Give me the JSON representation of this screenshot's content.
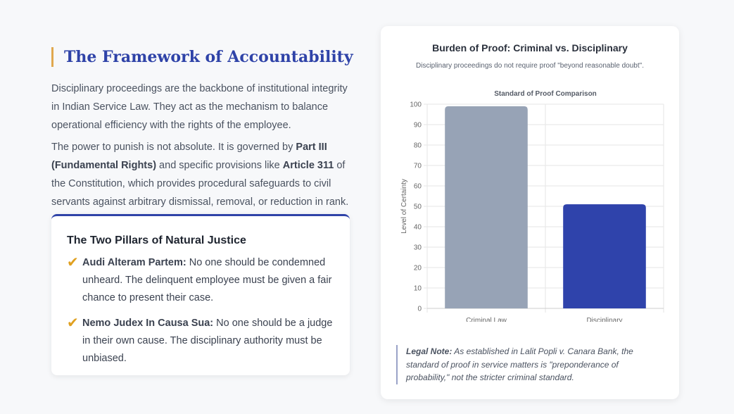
{
  "left": {
    "title": "The Framework of Accountability",
    "para1": "Disciplinary proceedings are the backbone of institutional integrity in Indian Service Law. They act as the mechanism to balance operational efficiency with the rights of the employee.",
    "para2": {
      "t1": "The power to punish is not absolute. It is governed by ",
      "b1": "Part III (Fundamental Rights)",
      "t2": " and specific provisions like ",
      "b2": "Article 311",
      "t3": " of the Constitution, which provides procedural safeguards to civil servants against arbitrary dismissal, removal, or reduction in rank."
    },
    "card": {
      "title": "The Two Pillars of Natural Justice",
      "items": [
        {
          "term": "Audi Alteram Partem:",
          "text": " No one should be condemned unheard. The delinquent employee must be given a fair chance to present their case."
        },
        {
          "term": "Nemo Judex In Causa Sua:",
          "text": " No one should be a judge in their own cause. The disciplinary authority must be unbiased."
        }
      ]
    }
  },
  "right": {
    "heading": "Burden of Proof: Criminal vs. Disciplinary",
    "subheading": "Disciplinary proceedings do not require proof \"beyond reasonable doubt\".",
    "note_label": "Legal Note:",
    "note_text": " As established in Lalit Popli v. Canara Bank, the standard of proof in service matters is \"preponderance of probability,\" not the stricter criminal standard."
  },
  "chart_data": {
    "type": "bar",
    "title": "Standard of Proof Comparison",
    "categories": [
      [
        "Criminal Law",
        "Standard"
      ],
      [
        "Disciplinary",
        "Standard"
      ]
    ],
    "values": [
      99,
      51
    ],
    "colors": [
      "#97a3b6",
      "#2f43ab"
    ],
    "xlabel": "",
    "ylabel": "Level of Certainty",
    "ylim": [
      0,
      100
    ],
    "yticks": [
      0,
      10,
      20,
      30,
      40,
      50,
      60,
      70,
      80,
      90,
      100
    ],
    "grid": true
  }
}
